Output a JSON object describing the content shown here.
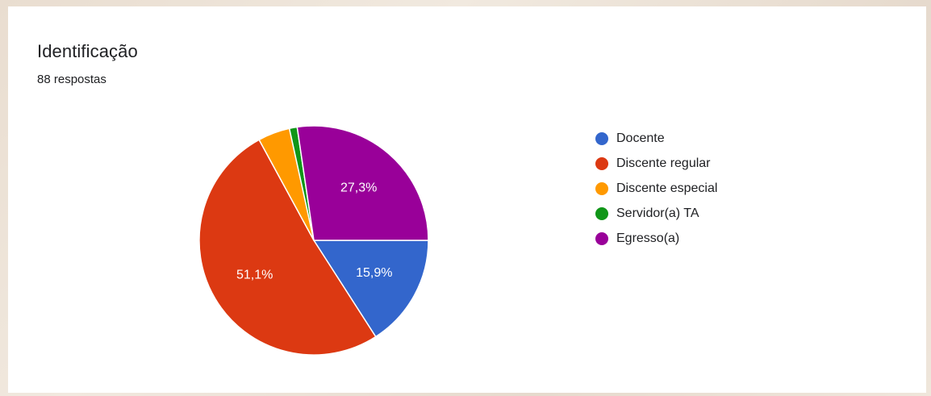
{
  "header": {
    "title": "Identificação",
    "subtitle": "88 respostas"
  },
  "legend": {
    "items": [
      {
        "label": "Docente",
        "color": "#3366cc"
      },
      {
        "label": "Discente regular",
        "color": "#dc3912"
      },
      {
        "label": "Discente especial",
        "color": "#ff9900"
      },
      {
        "label": "Servidor(a) TA",
        "color": "#109618"
      },
      {
        "label": "Egresso(a)",
        "color": "#990099"
      }
    ]
  },
  "chart_data": {
    "type": "pie",
    "title": "Identificação",
    "subtitle": "88 respostas",
    "categories": [
      "Docente",
      "Discente regular",
      "Discente especial",
      "Servidor(a) TA",
      "Egresso(a)"
    ],
    "values": [
      15.9,
      51.1,
      4.5,
      1.1,
      27.3
    ],
    "counts": [
      14,
      45,
      4,
      1,
      24
    ],
    "data_labels": [
      "15,9%",
      "51,1%",
      "",
      "",
      "27,3%"
    ],
    "colors": [
      "#3366cc",
      "#dc3912",
      "#ff9900",
      "#109618",
      "#990099"
    ],
    "legend_position": "right"
  }
}
